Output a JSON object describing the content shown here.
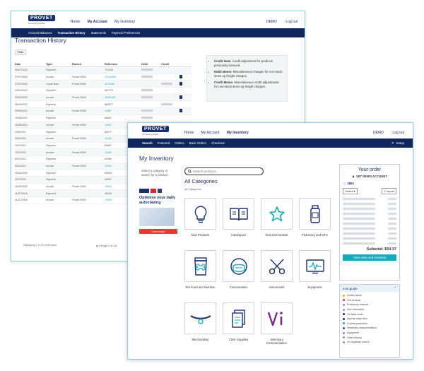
{
  "back_window": {
    "logo": "PROVET",
    "logo_sub": "connecting health",
    "nav": [
      "Home",
      "My Account",
      "My Inventory"
    ],
    "account": "DEMO",
    "logout": "Log out",
    "subnav": [
      "Account Balances",
      "Transaction History",
      "Statements",
      "Payment Preferences"
    ],
    "title": "Transaction History",
    "filter": "Filter",
    "columns": [
      "Date",
      "Type",
      "Branch",
      "Reference",
      "Debit",
      "Credit"
    ],
    "rows": [
      {
        "date": "26/07/2022",
        "type": "Payment",
        "branch": "",
        "ref": "721205"
      },
      {
        "date": "27/07/2022",
        "type": "Invoice",
        "branch": "Provet NSW",
        "ref": "12141806"
      },
      {
        "date": "27/07/2022",
        "type": "Credit Note",
        "branch": "Provet NSW",
        "ref": "1179409"
      },
      {
        "date": "24/03/2022",
        "type": "Payment",
        "branch": "",
        "ref": "697772"
      },
      {
        "date": "22/03/2022",
        "type": "Invoice",
        "branch": "Provet NSW",
        "ref": "11911451"
      },
      {
        "date": "30/09/2021",
        "type": "Payment",
        "branch": "",
        "ref": "664577"
      },
      {
        "date": "29/09/2021",
        "type": "Invoice",
        "branch": "Provet NSW",
        "ref": "11587"
      },
      {
        "date": "19/08/2021",
        "type": "Payment",
        "branch": "",
        "ref": "65657"
      },
      {
        "date": "16/08/2021",
        "type": "Invoice",
        "branch": "Provet NSW",
        "ref": "11502"
      },
      {
        "date": "4/09/2021",
        "type": "Payment",
        "branch": "",
        "ref": "65077"
      },
      {
        "date": "3/09/2021",
        "type": "Invoice",
        "branch": "Provet NSW",
        "ref": "11202"
      },
      {
        "date": "7/01/2021",
        "type": "Payment",
        "branch": "",
        "ref": "62867"
      },
      {
        "date": "7/01/2021",
        "type": "Invoice",
        "branch": "Provet NSW",
        "ref": "11090"
      },
      {
        "date": "6/01/2021",
        "type": "Payment",
        "branch": "",
        "ref": "61960"
      },
      {
        "date": "6/01/2021",
        "type": "Invoice",
        "branch": "Provet NSW",
        "ref": "11090"
      },
      {
        "date": "25/11/2020",
        "type": "Payment",
        "branch": "",
        "ref": "60804"
      },
      {
        "date": "2/07/2020",
        "type": "Payment",
        "branch": "",
        "ref": "59537"
      },
      {
        "date": "30/09/2020",
        "type": "Invoice",
        "branch": "Provet NSW",
        "ref": "10910"
      },
      {
        "date": "11/07/2018",
        "type": "Payment",
        "branch": "",
        "ref": "45240"
      },
      {
        "date": "11/07/2018",
        "type": "Invoice",
        "branch": "Provet NSW",
        "ref": "72035"
      }
    ],
    "footer": "Displaying 1 to 20 of 68 items",
    "pager": "Page 1 of 4",
    "notes": [
      {
        "term": "Credit Note",
        "text": ": Credit adjustment for products previously invoiced."
      },
      {
        "term": "Debit Memo",
        "text": ": Miscellaneous charges for non-stock items eg freight charges."
      },
      {
        "term": "Credit Memo",
        "text": ": Miscellaneous credit adjustments for non-stock items eg freight charges."
      }
    ]
  },
  "front_window": {
    "logo": "PROVET",
    "logo_sub": "connecting health",
    "nav": [
      "Home",
      "My Account",
      "My Inventory"
    ],
    "account": "DEMO",
    "logout": "Log out",
    "subnav": [
      "Search",
      "Featured",
      "Orders",
      "Back Orders",
      "Checkout"
    ],
    "setup": "Setup",
    "title": "My Inventory",
    "prompt": "Select a category or search for a product.",
    "promo": {
      "headline": "Optimise your daily autoclaving",
      "button": "Order today!"
    },
    "search_placeholder": "Search products...",
    "categories_title": "All Categories",
    "categories_sub": "All Categories",
    "categories": [
      {
        "label": "New Products",
        "icon": "lightbulb-icon"
      },
      {
        "label": "Catalogues",
        "icon": "book-icon"
      },
      {
        "label": "Exclusive Brands",
        "icon": "star-icon"
      },
      {
        "label": "Pharmacy and OTC",
        "icon": "bottle-icon"
      },
      {
        "label": "Pet Food and Nutrition",
        "icon": "pet-food-icon"
      },
      {
        "label": "Consumables",
        "icon": "mask-icon"
      },
      {
        "label": "Instruments",
        "icon": "scissors-icon"
      },
      {
        "label": "Equipment",
        "icon": "monitor-icon"
      },
      {
        "label": "Merchandise",
        "icon": "collar-icon"
      },
      {
        "label": "Clinic Supplies",
        "icon": "documents-icon"
      },
      {
        "label": "Veterinary Instrumentation",
        "icon": "vi-logo-icon"
      }
    ],
    "order": {
      "title": "Your order",
      "account": "VET DEMO ACCOUNT",
      "ref": "2854",
      "orders_btn": "Orders",
      "import_btn": "Import",
      "subtotal": "Subtotal: $54.37",
      "checkout": "View order and checkout"
    },
    "icon_guide": {
      "title": "Icon guide",
      "items": [
        {
          "label": "Limited stock",
          "color": "#f0b400"
        },
        {
          "label": "Out of stock",
          "color": "#e53935"
        },
        {
          "label": "Previously ordered",
          "color": "#8e99a8"
        },
        {
          "label": "Non-returnable",
          "color": "#8e99a8"
        },
        {
          "label": "On back order",
          "color": "#1b2f6e"
        },
        {
          "label": "Special order item",
          "color": "#1b2f6e"
        },
        {
          "label": "Current promotion",
          "color": "#19a9bf"
        },
        {
          "label": "Veterinary Instrumentation",
          "color": "#7b2a82"
        },
        {
          "label": "Equipment",
          "color": "#8e99a8"
        },
        {
          "label": "Order history",
          "color": "#8e99a8"
        },
        {
          "label": "On duplicate orders",
          "color": "#8e99a8"
        }
      ]
    }
  }
}
